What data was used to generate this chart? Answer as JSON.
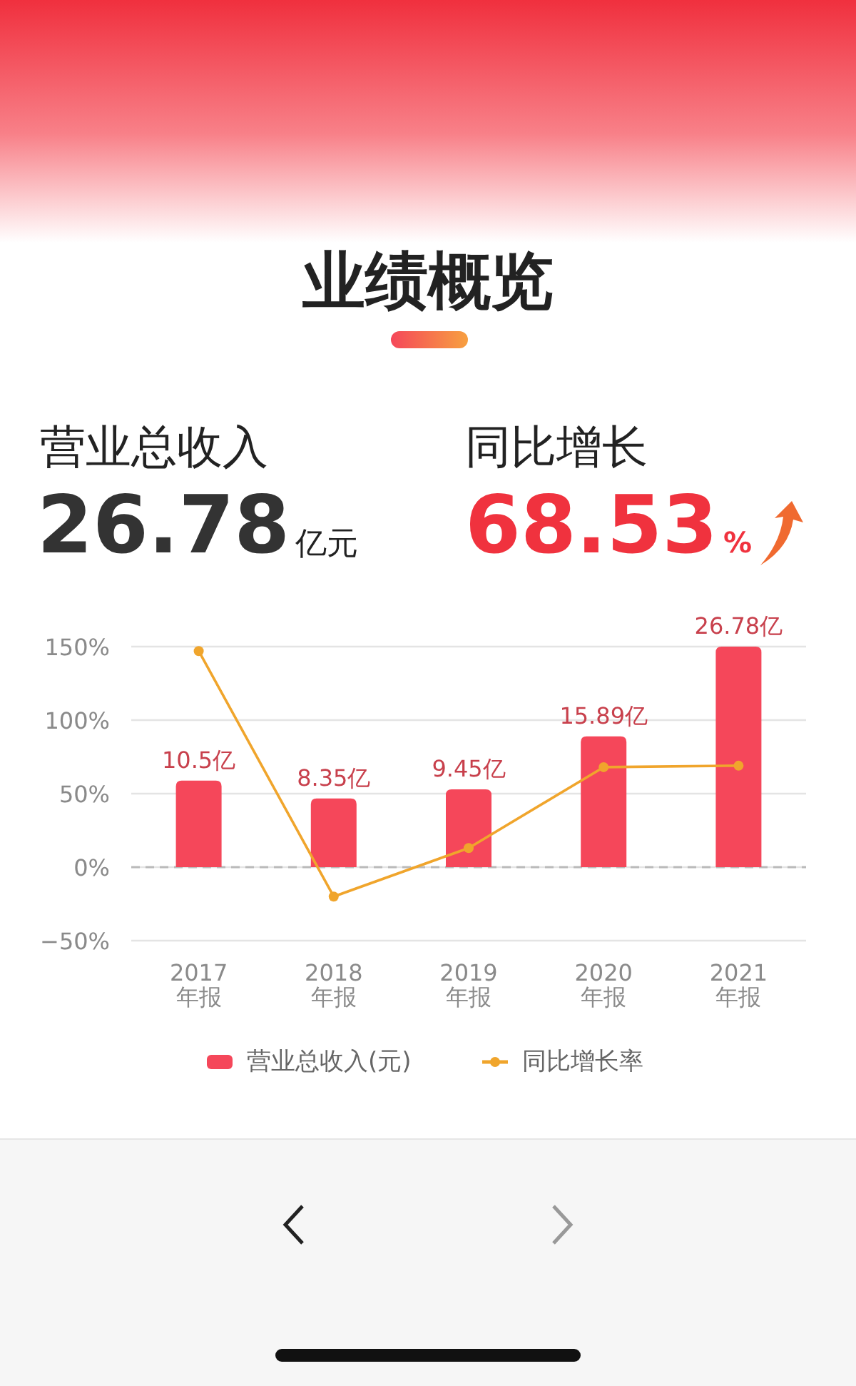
{
  "chart_data": {
    "type": "bar",
    "title": "业绩概览",
    "annotations": [
      "营业总收入",
      "26.78",
      "亿元",
      "同比增长",
      "68.53",
      "%"
    ],
    "categories": [
      "2017年报",
      "2018年报",
      "2019年报",
      "2020年报",
      "2021年报"
    ],
    "series": [
      {
        "name": "营业总收入(元)",
        "axis": "y2",
        "color": "#f5475a",
        "values": [
          10.5,
          8.35,
          9.45,
          15.89,
          26.78
        ],
        "value_labels": [
          "10.5亿",
          "8.35亿",
          "9.45亿",
          "15.89亿",
          "26.78亿"
        ]
      },
      {
        "name": "同比增长率",
        "type": "line",
        "color": "#f0a52c",
        "marker": "circle",
        "values": [
          147,
          -20,
          13,
          68,
          69
        ]
      }
    ],
    "ref_lines": [
      {
        "axis": "y",
        "value": 0,
        "color": "#bbbbbb",
        "line_style": "dashed"
      }
    ],
    "ylim": [
      -50,
      150
    ],
    "yticks": [
      {
        "value": -50,
        "label": "−50%"
      },
      {
        "value": 0,
        "label": "0%"
      },
      {
        "value": 50,
        "label": "50%"
      },
      {
        "value": 100,
        "label": "100%"
      },
      {
        "value": 150,
        "label": "150%"
      }
    ],
    "grid": "y",
    "legend": "bottom"
  }
}
